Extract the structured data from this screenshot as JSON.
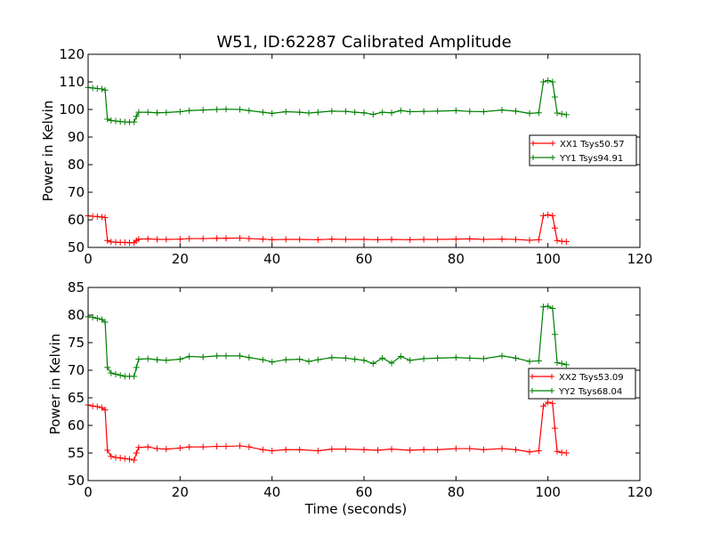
{
  "figure": {
    "title": "W51, ID:62287 Calibrated Amplitude"
  },
  "chart_data": [
    {
      "type": "line",
      "title": "W51, ID:62287 Calibrated Amplitude",
      "xlabel": "",
      "ylabel": "Power in Kelvin",
      "xlim": [
        0,
        120
      ],
      "ylim": [
        50,
        120
      ],
      "xticks": [
        0,
        20,
        40,
        60,
        80,
        100,
        120
      ],
      "yticks": [
        50,
        60,
        70,
        80,
        90,
        100,
        110,
        120
      ],
      "grid": false,
      "legend_position": "right",
      "marker": "+",
      "series": [
        {
          "name": "XX1 Tsys50.57",
          "color": "#ff0000",
          "points": [
            [
              0,
              61.5
            ],
            [
              1,
              61.3
            ],
            [
              2,
              61.2
            ],
            [
              3,
              61.0
            ],
            [
              3.7,
              60.8
            ],
            [
              4.2,
              52.5
            ],
            [
              5,
              52.0
            ],
            [
              6,
              51.9
            ],
            [
              7,
              51.8
            ],
            [
              8,
              51.8
            ],
            [
              9,
              51.7
            ],
            [
              10,
              51.7
            ],
            [
              10.5,
              52.5
            ],
            [
              11,
              53.0
            ],
            [
              13,
              53.1
            ],
            [
              15,
              52.9
            ],
            [
              17,
              52.9
            ],
            [
              20,
              53.0
            ],
            [
              22,
              53.2
            ],
            [
              25,
              53.2
            ],
            [
              28,
              53.3
            ],
            [
              30,
              53.3
            ],
            [
              33,
              53.4
            ],
            [
              35,
              53.2
            ],
            [
              38,
              53.0
            ],
            [
              40,
              52.8
            ],
            [
              43,
              52.9
            ],
            [
              46,
              52.9
            ],
            [
              50,
              52.8
            ],
            [
              53,
              53.0
            ],
            [
              56,
              52.9
            ],
            [
              60,
              52.9
            ],
            [
              63,
              52.8
            ],
            [
              66,
              52.9
            ],
            [
              70,
              52.8
            ],
            [
              73,
              52.9
            ],
            [
              76,
              52.9
            ],
            [
              80,
              53.0
            ],
            [
              83,
              53.1
            ],
            [
              86,
              52.9
            ],
            [
              90,
              53.0
            ],
            [
              93,
              52.9
            ],
            [
              96,
              52.6
            ],
            [
              98,
              52.8
            ],
            [
              99,
              61.5
            ],
            [
              100,
              61.8
            ],
            [
              101,
              61.5
            ],
            [
              101.5,
              57.0
            ],
            [
              102,
              52.5
            ],
            [
              103,
              52.2
            ],
            [
              104,
              52.1
            ]
          ]
        },
        {
          "name": "YY1 Tsys94.91",
          "color": "#008000",
          "points": [
            [
              0,
              108.0
            ],
            [
              1,
              107.8
            ],
            [
              2,
              107.6
            ],
            [
              3,
              107.4
            ],
            [
              3.7,
              107.0
            ],
            [
              4.2,
              96.5
            ],
            [
              5,
              96.0
            ],
            [
              6,
              95.8
            ],
            [
              7,
              95.6
            ],
            [
              8,
              95.5
            ],
            [
              9,
              95.4
            ],
            [
              10,
              95.5
            ],
            [
              10.5,
              97.5
            ],
            [
              11,
              99.0
            ],
            [
              13,
              99.0
            ],
            [
              15,
              98.8
            ],
            [
              17,
              98.9
            ],
            [
              20,
              99.2
            ],
            [
              22,
              99.6
            ],
            [
              25,
              99.8
            ],
            [
              28,
              100.0
            ],
            [
              30,
              100.1
            ],
            [
              33,
              100.0
            ],
            [
              35,
              99.6
            ],
            [
              38,
              99.0
            ],
            [
              40,
              98.6
            ],
            [
              43,
              99.2
            ],
            [
              46,
              99.0
            ],
            [
              48,
              98.7
            ],
            [
              50,
              99.0
            ],
            [
              53,
              99.4
            ],
            [
              56,
              99.3
            ],
            [
              58,
              99.0
            ],
            [
              60,
              98.8
            ],
            [
              62,
              98.2
            ],
            [
              64,
              99.0
            ],
            [
              66,
              98.8
            ],
            [
              68,
              99.6
            ],
            [
              70,
              99.2
            ],
            [
              73,
              99.3
            ],
            [
              76,
              99.4
            ],
            [
              80,
              99.6
            ],
            [
              83,
              99.3
            ],
            [
              86,
              99.2
            ],
            [
              90,
              99.8
            ],
            [
              93,
              99.4
            ],
            [
              96,
              98.6
            ],
            [
              98,
              98.8
            ],
            [
              99,
              110.0
            ],
            [
              100,
              110.5
            ],
            [
              101,
              110.0
            ],
            [
              101.5,
              104.5
            ],
            [
              102,
              98.7
            ],
            [
              103,
              98.4
            ],
            [
              104,
              98.1
            ]
          ]
        }
      ]
    },
    {
      "type": "line",
      "title": "",
      "xlabel": "Time (seconds)",
      "ylabel": "Power in Kelvin",
      "xlim": [
        0,
        120
      ],
      "ylim": [
        50,
        85
      ],
      "xticks": [
        0,
        20,
        40,
        60,
        80,
        100,
        120
      ],
      "yticks": [
        50,
        55,
        60,
        65,
        70,
        75,
        80,
        85
      ],
      "grid": false,
      "legend_position": "right",
      "marker": "+",
      "series": [
        {
          "name": "XX2 Tsys53.09",
          "color": "#ff0000",
          "points": [
            [
              0,
              63.7
            ],
            [
              1,
              63.5
            ],
            [
              2,
              63.4
            ],
            [
              3,
              63.2
            ],
            [
              3.7,
              62.8
            ],
            [
              4.2,
              55.5
            ],
            [
              5,
              54.4
            ],
            [
              6,
              54.2
            ],
            [
              7,
              54.1
            ],
            [
              8,
              54.0
            ],
            [
              9,
              53.9
            ],
            [
              10,
              53.7
            ],
            [
              10.5,
              55.0
            ],
            [
              11,
              56.0
            ],
            [
              13,
              56.1
            ],
            [
              15,
              55.8
            ],
            [
              17,
              55.7
            ],
            [
              20,
              55.9
            ],
            [
              22,
              56.1
            ],
            [
              25,
              56.1
            ],
            [
              28,
              56.2
            ],
            [
              30,
              56.2
            ],
            [
              33,
              56.3
            ],
            [
              35,
              56.1
            ],
            [
              38,
              55.6
            ],
            [
              40,
              55.4
            ],
            [
              43,
              55.6
            ],
            [
              46,
              55.6
            ],
            [
              50,
              55.4
            ],
            [
              53,
              55.7
            ],
            [
              56,
              55.7
            ],
            [
              60,
              55.6
            ],
            [
              63,
              55.5
            ],
            [
              66,
              55.7
            ],
            [
              70,
              55.5
            ],
            [
              73,
              55.6
            ],
            [
              76,
              55.6
            ],
            [
              80,
              55.8
            ],
            [
              83,
              55.8
            ],
            [
              86,
              55.6
            ],
            [
              90,
              55.8
            ],
            [
              93,
              55.6
            ],
            [
              96,
              55.2
            ],
            [
              98,
              55.4
            ],
            [
              99,
              63.5
            ],
            [
              100,
              64.2
            ],
            [
              101,
              64.0
            ],
            [
              101.5,
              59.5
            ],
            [
              102,
              55.3
            ],
            [
              103,
              55.1
            ],
            [
              104,
              55.0
            ]
          ]
        },
        {
          "name": "YY2 Tsys68.04",
          "color": "#008000",
          "points": [
            [
              0,
              79.7
            ],
            [
              1,
              79.6
            ],
            [
              2,
              79.4
            ],
            [
              3,
              79.2
            ],
            [
              3.7,
              78.7
            ],
            [
              4.2,
              70.5
            ],
            [
              5,
              69.5
            ],
            [
              6,
              69.3
            ],
            [
              7,
              69.1
            ],
            [
              8,
              68.9
            ],
            [
              9,
              68.9
            ],
            [
              10,
              68.9
            ],
            [
              10.5,
              70.5
            ],
            [
              11,
              72.0
            ],
            [
              13,
              72.1
            ],
            [
              15,
              71.9
            ],
            [
              17,
              71.8
            ],
            [
              20,
              72.0
            ],
            [
              22,
              72.5
            ],
            [
              25,
              72.4
            ],
            [
              28,
              72.6
            ],
            [
              30,
              72.6
            ],
            [
              33,
              72.6
            ],
            [
              35,
              72.3
            ],
            [
              38,
              71.9
            ],
            [
              40,
              71.5
            ],
            [
              43,
              71.9
            ],
            [
              46,
              72.0
            ],
            [
              48,
              71.6
            ],
            [
              50,
              71.9
            ],
            [
              53,
              72.3
            ],
            [
              56,
              72.2
            ],
            [
              58,
              72.0
            ],
            [
              60,
              71.8
            ],
            [
              62,
              71.2
            ],
            [
              64,
              72.2
            ],
            [
              66,
              71.3
            ],
            [
              68,
              72.5
            ],
            [
              70,
              71.8
            ],
            [
              73,
              72.1
            ],
            [
              76,
              72.2
            ],
            [
              80,
              72.3
            ],
            [
              83,
              72.2
            ],
            [
              86,
              72.1
            ],
            [
              90,
              72.6
            ],
            [
              93,
              72.2
            ],
            [
              96,
              71.6
            ],
            [
              98,
              71.7
            ],
            [
              99,
              81.5
            ],
            [
              100,
              81.6
            ],
            [
              101,
              81.2
            ],
            [
              101.5,
              76.5
            ],
            [
              102,
              71.4
            ],
            [
              103,
              71.2
            ],
            [
              104,
              71.0
            ]
          ]
        }
      ]
    }
  ]
}
